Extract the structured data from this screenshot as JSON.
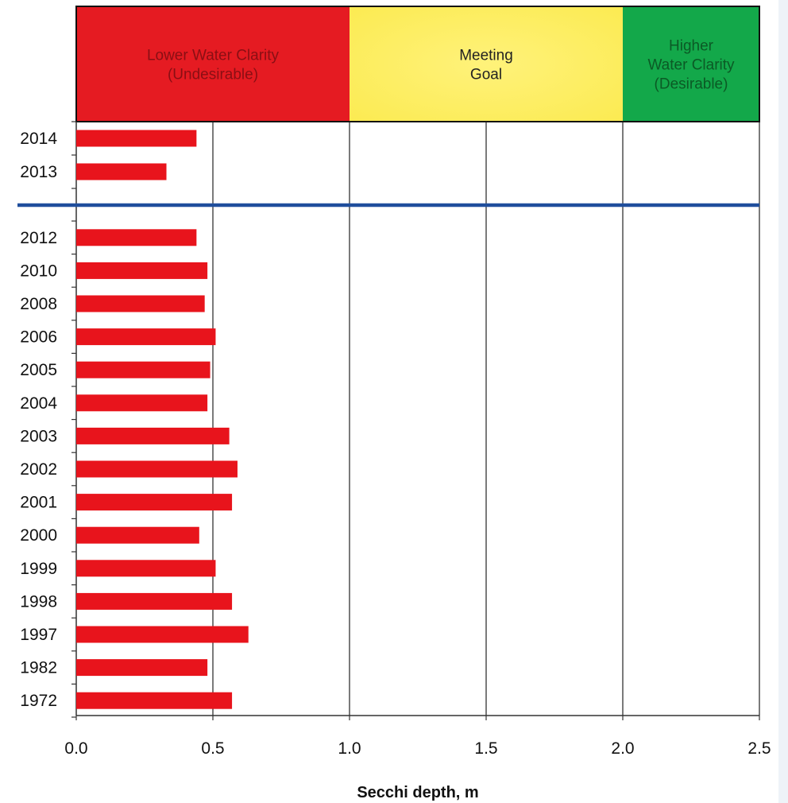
{
  "chart_data": {
    "type": "bar",
    "orientation": "horizontal",
    "xlabel": "Secchi depth, m",
    "ylabel": "",
    "xlim": [
      0,
      2.5
    ],
    "x_ticks": [
      "0.0",
      "0.5",
      "1.0",
      "1.5",
      "2.0",
      "2.5"
    ],
    "grid": "vertical",
    "bar_color": "#e8141c",
    "separator_color": "#1f4e9c",
    "bands": [
      {
        "name": "lower",
        "range": [
          0,
          1.0
        ],
        "lines": [
          "Lower Water Clarity",
          "(Undesirable)"
        ],
        "color": "#e51b22",
        "text_color": "#8a0f14"
      },
      {
        "name": "meeting",
        "range": [
          1.0,
          2.0
        ],
        "lines": [
          "Meeting",
          "Goal"
        ],
        "color": "#fbea4f",
        "text_color": "#222222"
      },
      {
        "name": "higher",
        "range": [
          2.0,
          2.5
        ],
        "lines": [
          "Higher",
          "Water Clarity",
          "(Desirable)"
        ],
        "color": "#13a84a",
        "text_color": "#0b5a25"
      }
    ],
    "groups": [
      {
        "name": "recent",
        "categories": [
          "2014",
          "2013"
        ],
        "values": [
          0.44,
          0.33
        ]
      },
      {
        "name": "historical",
        "categories": [
          "2012",
          "2010",
          "2008",
          "2006",
          "2005",
          "2004",
          "2003",
          "2002",
          "2001",
          "2000",
          "1999",
          "1998",
          "1997",
          "1982",
          "1972"
        ],
        "values": [
          0.44,
          0.48,
          0.47,
          0.51,
          0.49,
          0.48,
          0.56,
          0.59,
          0.57,
          0.45,
          0.51,
          0.57,
          0.63,
          0.48,
          0.57
        ]
      }
    ]
  }
}
